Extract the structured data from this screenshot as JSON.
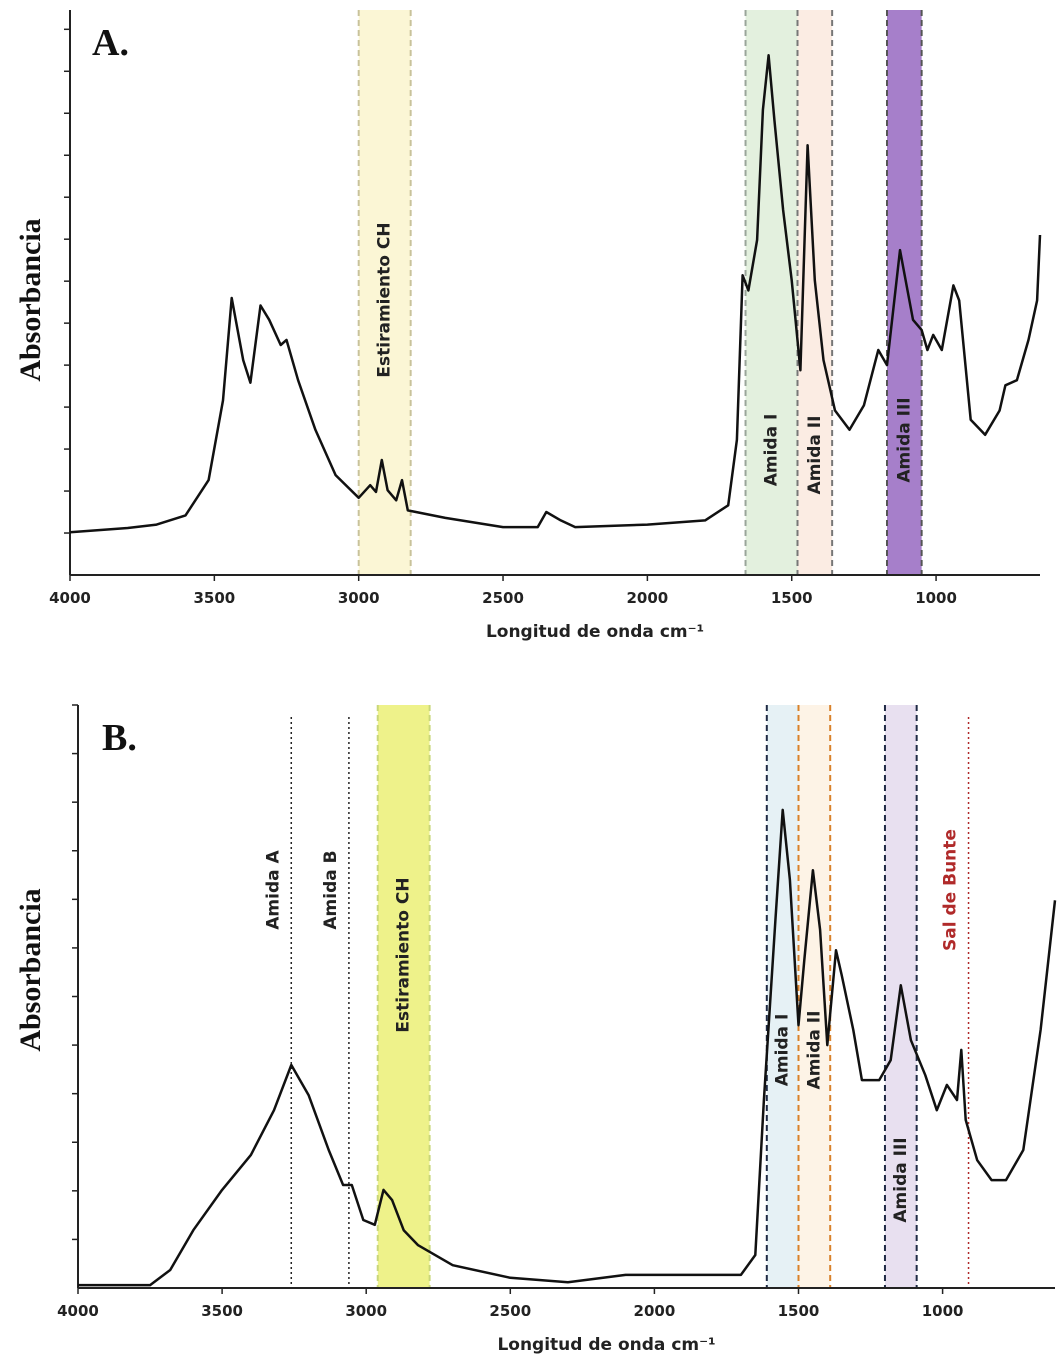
{
  "chart_data": [
    {
      "type": "line",
      "panel_label": "A.",
      "y_label": "Absorbancia",
      "x_label": "Longitud de onda cm⁻¹",
      "xlim": [
        4000,
        640
      ],
      "xticks": [
        4000,
        3500,
        3000,
        2500,
        2000,
        1500,
        1000
      ],
      "ylim": [
        0,
        6.73
      ],
      "yticks": [
        0.5,
        1,
        1.5,
        2,
        2.5,
        3,
        3.5,
        4,
        4.5,
        5,
        5.5,
        6,
        6.5
      ],
      "color": "#111111",
      "x": [
        4000,
        3800,
        3700,
        3600,
        3520,
        3470,
        3440,
        3400,
        3375,
        3340,
        3310,
        3270,
        3250,
        3210,
        3150,
        3080,
        3000,
        2960,
        2940,
        2920,
        2900,
        2870,
        2850,
        2830,
        2700,
        2500,
        2380,
        2350,
        2300,
        2250,
        2000,
        1800,
        1720,
        1690,
        1670,
        1650,
        1620,
        1600,
        1580,
        1560,
        1530,
        1500,
        1470,
        1445,
        1420,
        1390,
        1350,
        1300,
        1250,
        1200,
        1170,
        1125,
        1080,
        1050,
        1030,
        1010,
        980,
        940,
        920,
        880,
        830,
        780,
        760,
        720,
        680,
        650,
        640
      ],
      "values": [
        0.51,
        0.56,
        0.6,
        0.71,
        1.13,
        2.08,
        3.3,
        2.56,
        2.29,
        3.21,
        3.04,
        2.74,
        2.8,
        2.32,
        1.73,
        1.19,
        0.92,
        1.07,
        0.99,
        1.37,
        1.01,
        0.89,
        1.13,
        0.77,
        0.68,
        0.57,
        0.57,
        0.75,
        0.65,
        0.57,
        0.6,
        0.65,
        0.83,
        1.61,
        3.57,
        3.39,
        3.99,
        5.54,
        6.19,
        5.42,
        4.35,
        3.51,
        2.44,
        5.12,
        3.51,
        2.56,
        1.96,
        1.73,
        2.02,
        2.68,
        2.5,
        3.87,
        3.04,
        2.92,
        2.68,
        2.86,
        2.68,
        3.45,
        3.27,
        1.85,
        1.67,
        1.96,
        2.26,
        2.32,
        2.8,
        3.27,
        4.05
      ],
      "bands": [
        {
          "label": "Estiramiento CH",
          "from": 3000,
          "to": 2820,
          "color": "#fbf6d5",
          "border_color": "#c8c29a"
        },
        {
          "label": "Amida I",
          "from": 1660,
          "to": 1480,
          "color": "#e3f0de",
          "border_color": "#9aa59a"
        },
        {
          "label": "Amida II",
          "from": 1480,
          "to": 1360,
          "color": "#fbece3",
          "border_color": "#777777"
        },
        {
          "label": "Amida III",
          "from": 1170,
          "to": 1050,
          "color": "#a67fca",
          "border_color": "#555555"
        }
      ]
    },
    {
      "type": "line",
      "panel_label": "B.",
      "y_label": "Absorbancia",
      "x_label": "Longitud de onda cm⁻¹",
      "xlim": [
        4000,
        610
      ],
      "xticks": [
        4000,
        3500,
        3000,
        2500,
        2000,
        1500,
        1000
      ],
      "ylim": [
        0,
        12
      ],
      "yticks": [
        1,
        2,
        3,
        4,
        5,
        6,
        7,
        8,
        9,
        10,
        11,
        12
      ],
      "color": "#111111",
      "x": [
        4000,
        3750,
        3680,
        3600,
        3500,
        3400,
        3320,
        3260,
        3200,
        3130,
        3080,
        3050,
        3010,
        2970,
        2940,
        2910,
        2870,
        2820,
        2700,
        2500,
        2300,
        2100,
        1900,
        1700,
        1650,
        1620,
        1580,
        1555,
        1530,
        1500,
        1480,
        1450,
        1425,
        1400,
        1370,
        1350,
        1310,
        1280,
        1220,
        1180,
        1145,
        1110,
        1060,
        1020,
        985,
        950,
        935,
        920,
        880,
        830,
        780,
        720,
        660,
        610
      ],
      "values": [
        0.06,
        0.06,
        0.37,
        1.19,
        2.02,
        2.74,
        3.66,
        4.59,
        3.97,
        2.84,
        2.12,
        2.12,
        1.4,
        1.3,
        2.02,
        1.81,
        1.19,
        0.88,
        0.47,
        0.21,
        0.12,
        0.27,
        0.27,
        0.27,
        0.68,
        3.87,
        7.57,
        9.84,
        8.4,
        5.41,
        6.75,
        8.6,
        7.37,
        5.0,
        6.95,
        6.44,
        5.31,
        4.28,
        4.28,
        4.69,
        6.23,
        5.1,
        4.38,
        3.66,
        4.18,
        3.87,
        4.9,
        3.46,
        2.63,
        2.22,
        2.22,
        2.84,
        5.31,
        7.98
      ],
      "bands": [
        {
          "label": "Estiramiento CH",
          "from": 2960,
          "to": 2780,
          "color": "#eef28a",
          "border_color": "#c9d77a"
        },
        {
          "label": "Amida I",
          "from": 1610,
          "to": 1500,
          "color": "#e6f1f5",
          "border_color": "#1f2a44"
        },
        {
          "label": "Amida II",
          "from": 1500,
          "to": 1390,
          "color": "#fdf3e6",
          "border_color": "#d9822b"
        },
        {
          "label": "Amida III",
          "from": 1200,
          "to": 1090,
          "color": "#e8e0f0",
          "border_color": "#1f2a44"
        }
      ],
      "lines": [
        {
          "label": "Amida A",
          "x": 3260,
          "color": "#222222"
        },
        {
          "label": "Amida B",
          "x": 3060,
          "color": "#222222"
        },
        {
          "label": "Sal de Bunte",
          "x": 910,
          "color": "#b02a2a"
        }
      ]
    }
  ]
}
